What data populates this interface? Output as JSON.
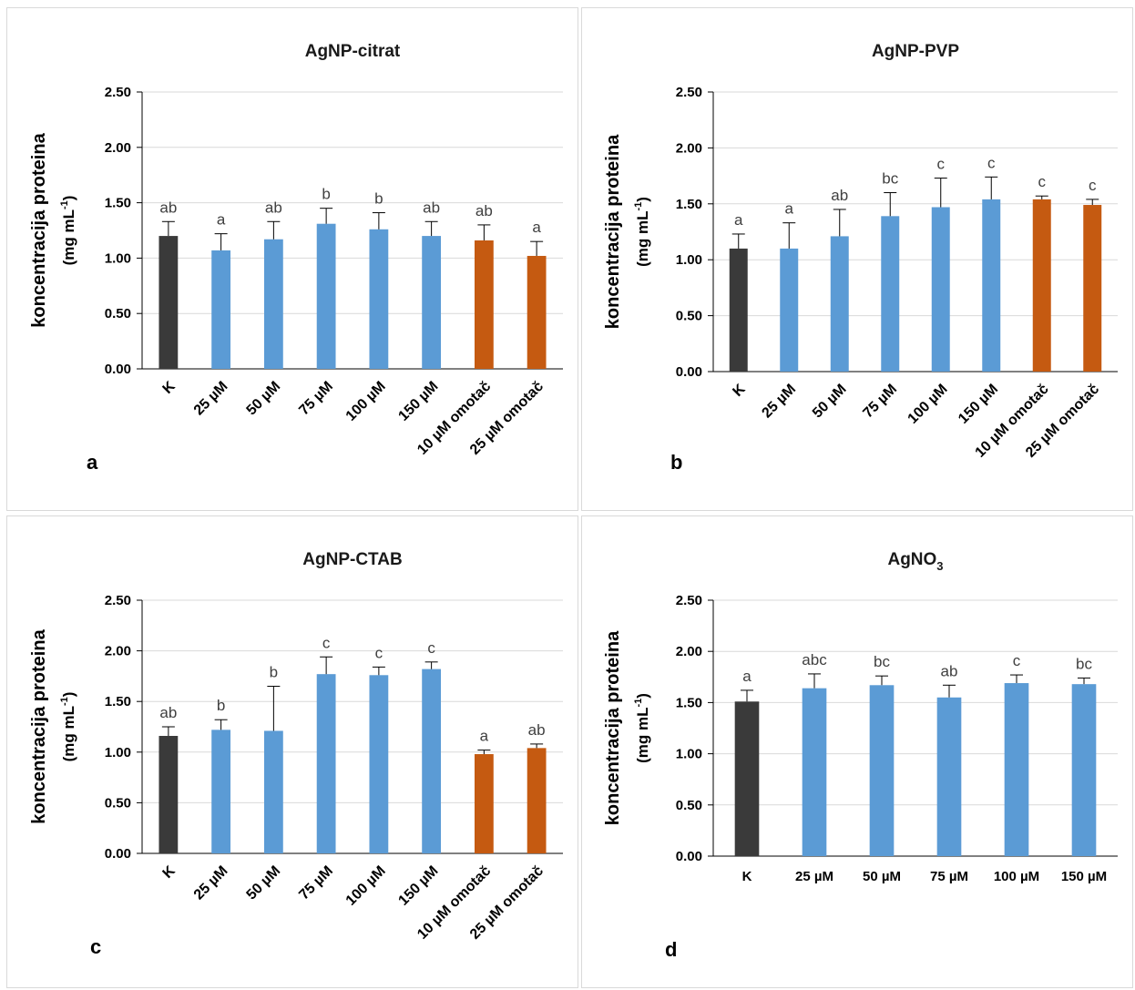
{
  "panels": [
    {
      "letter": "a",
      "title": "AgNP-citrat",
      "ylabel": "koncentracija proteina",
      "yunit": "(mg mL",
      "yunit_sup": "-1",
      "yunit_close": ")",
      "xlabel_style": "rotated",
      "chart_data": {
        "type": "bar",
        "title": "AgNP-citrat",
        "ylabel": "koncentracija proteina (mg mL-1)",
        "ylim": [
          0,
          2.5
        ],
        "yticks": [
          0.0,
          0.5,
          1.0,
          1.5,
          2.0,
          2.5
        ],
        "ytick_labels": [
          "0.00",
          "0.50",
          "1.00",
          "1.50",
          "2.00",
          "2.50"
        ],
        "grid": true,
        "categories": [
          "K",
          "25 µM",
          "50 µM",
          "75 µM",
          "100 µM",
          "150 µM",
          "10 µM omotač",
          "25 µM omotač"
        ],
        "values": [
          1.2,
          1.07,
          1.17,
          1.31,
          1.26,
          1.2,
          1.16,
          1.02
        ],
        "errors": [
          0.13,
          0.15,
          0.16,
          0.14,
          0.15,
          0.13,
          0.14,
          0.13
        ],
        "significance": [
          "ab",
          "a",
          "ab",
          "b",
          "b",
          "ab",
          "ab",
          "a"
        ],
        "colors": [
          "#3a3a3a",
          "#5b9bd5",
          "#5b9bd5",
          "#5b9bd5",
          "#5b9bd5",
          "#5b9bd5",
          "#c55a11",
          "#c55a11"
        ]
      }
    },
    {
      "letter": "b",
      "title": "AgNP-PVP",
      "ylabel": "koncentracija proteina",
      "yunit": "(mg mL",
      "yunit_sup": "-1",
      "yunit_close": ")",
      "xlabel_style": "rotated",
      "chart_data": {
        "type": "bar",
        "title": "AgNP-PVP",
        "ylabel": "koncentracija proteina (mg mL-1)",
        "ylim": [
          0,
          2.5
        ],
        "yticks": [
          0.0,
          0.5,
          1.0,
          1.5,
          2.0,
          2.5
        ],
        "ytick_labels": [
          "0.00",
          "0.50",
          "1.00",
          "1.50",
          "2.00",
          "2.50"
        ],
        "grid": true,
        "categories": [
          "K",
          "25 µM",
          "50 µM",
          "75 µM",
          "100 µM",
          "150 µM",
          "10 µM omotač",
          "25 µM omotač"
        ],
        "values": [
          1.1,
          1.1,
          1.21,
          1.39,
          1.47,
          1.54,
          1.54,
          1.49
        ],
        "errors": [
          0.13,
          0.23,
          0.24,
          0.21,
          0.26,
          0.2,
          0.03,
          0.05
        ],
        "significance": [
          "a",
          "a",
          "ab",
          "bc",
          "c",
          "c",
          "c",
          "c"
        ],
        "colors": [
          "#3a3a3a",
          "#5b9bd5",
          "#5b9bd5",
          "#5b9bd5",
          "#5b9bd5",
          "#5b9bd5",
          "#c55a11",
          "#c55a11"
        ]
      }
    },
    {
      "letter": "c",
      "title": "AgNP-CTAB",
      "ylabel": "koncentracija proteina",
      "yunit": "(mg mL",
      "yunit_sup": "-1",
      "yunit_close": ")",
      "xlabel_style": "rotated",
      "chart_data": {
        "type": "bar",
        "title": "AgNP-CTAB",
        "ylabel": "koncentracija proteina (mg mL-1)",
        "ylim": [
          0,
          2.5
        ],
        "yticks": [
          0.0,
          0.5,
          1.0,
          1.5,
          2.0,
          2.5
        ],
        "ytick_labels": [
          "0.00",
          "0.50",
          "1.00",
          "1.50",
          "2.00",
          "2.50"
        ],
        "grid": true,
        "categories": [
          "K",
          "25 µM",
          "50 µM",
          "75 µM",
          "100 µM",
          "150 µM",
          "10 µM omotač",
          "25 µM omotač"
        ],
        "values": [
          1.16,
          1.22,
          1.21,
          1.77,
          1.76,
          1.82,
          0.98,
          1.04
        ],
        "errors": [
          0.09,
          0.1,
          0.44,
          0.17,
          0.08,
          0.07,
          0.04,
          0.04
        ],
        "significance": [
          "ab",
          "b",
          "b",
          "c",
          "c",
          "c",
          "a",
          "ab"
        ],
        "colors": [
          "#3a3a3a",
          "#5b9bd5",
          "#5b9bd5",
          "#5b9bd5",
          "#5b9bd5",
          "#5b9bd5",
          "#c55a11",
          "#c55a11"
        ]
      }
    },
    {
      "letter": "d",
      "title": "AgNO",
      "title_sub": "3",
      "ylabel": "koncentracija proteina",
      "yunit": "(mg mL",
      "yunit_sup": "-1",
      "yunit_close": ")",
      "xlabel_style": "flat",
      "chart_data": {
        "type": "bar",
        "title": "AgNO3",
        "ylabel": "koncentracija proteina (mg mL-1)",
        "ylim": [
          0,
          2.5
        ],
        "yticks": [
          0.0,
          0.5,
          1.0,
          1.5,
          2.0,
          2.5
        ],
        "ytick_labels": [
          "0.00",
          "0.50",
          "1.00",
          "1.50",
          "2.00",
          "2.50"
        ],
        "grid": true,
        "categories": [
          "K",
          "25 µM",
          "50 µM",
          "75 µM",
          "100 µM",
          "150 µM"
        ],
        "values": [
          1.51,
          1.64,
          1.67,
          1.55,
          1.69,
          1.68
        ],
        "errors": [
          0.11,
          0.14,
          0.09,
          0.12,
          0.08,
          0.06
        ],
        "significance": [
          "a",
          "abc",
          "bc",
          "ab",
          "c",
          "bc"
        ],
        "colors": [
          "#3a3a3a",
          "#5b9bd5",
          "#5b9bd5",
          "#5b9bd5",
          "#5b9bd5",
          "#5b9bd5"
        ]
      }
    }
  ]
}
